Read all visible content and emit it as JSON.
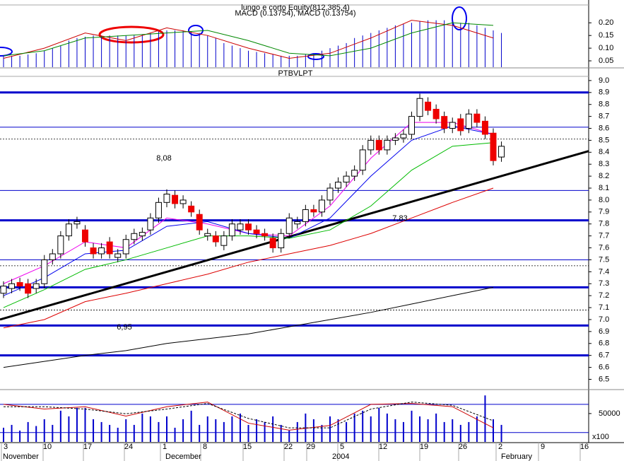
{
  "chart_data": [
    {
      "type": "macd",
      "title": "lungo e corto Equity(812.385,4)",
      "subtitle": "MACD (0.13754), MACD (0.13754)",
      "ylim": [
        0.025,
        0.29
      ],
      "yticks": [
        {
          "value": 0.2,
          "label": "0.20"
        },
        0.15,
        {
          "value": 0.1,
          "label": "0.10"
        },
        0.05
      ],
      "bar_color": "#0000cc",
      "bars": [
        0.07,
        0.07,
        0.07,
        0.075,
        0.08,
        0.09,
        0.1,
        0.11,
        0.13,
        0.14,
        0.145,
        0.15,
        0.15,
        0.15,
        0.15,
        0.15,
        0.15,
        0.155,
        0.16,
        0.165,
        0.17,
        0.17,
        0.17,
        0.165,
        0.16,
        0.15,
        0.14,
        0.12,
        0.11,
        0.1,
        0.09,
        0.085,
        0.08,
        0.075,
        0.07,
        0.07,
        0.07,
        0.075,
        0.08,
        0.09,
        0.1,
        0.11,
        0.12,
        0.14,
        0.15,
        0.16,
        0.17,
        0.18,
        0.19,
        0.195,
        0.2,
        0.205,
        0.21,
        0.21,
        0.21,
        0.21,
        0.2,
        0.2,
        0.19,
        0.18,
        0.17,
        0.16
      ],
      "series": [
        {
          "color": "#cc0000",
          "values": [
            0.06,
            0.1,
            0.16,
            0.13,
            0.18,
            0.15,
            0.1,
            0.06,
            0.08,
            0.14,
            0.21,
            0.19,
            0.14
          ]
        },
        {
          "color": "#008800",
          "values": [
            0.07,
            0.09,
            0.14,
            0.15,
            0.16,
            0.17,
            0.13,
            0.08,
            0.07,
            0.1,
            0.16,
            0.2,
            0.19
          ]
        }
      ]
    },
    {
      "type": "candlestick",
      "title": "PTBVLPT",
      "ylim": [
        6.42,
        9.1
      ],
      "yticks": [
        {
          "value": 9,
          "label": "9.0"
        },
        8.9,
        8.8,
        8.7,
        8.6,
        8.5,
        8.4,
        8.3,
        8.2,
        8.1,
        {
          "value": 8,
          "label": "8.0"
        },
        7.9,
        7.8,
        7.7,
        7.6,
        7.5,
        7.4,
        7.3,
        7.2,
        7.1,
        {
          "value": 7,
          "label": "7.0"
        },
        6.9,
        6.8,
        6.7,
        6.6,
        6.5
      ],
      "up_color": "#ffffff",
      "down_color": "#ee0000",
      "open": [
        7.22,
        7.26,
        7.31,
        7.3,
        7.26,
        7.3,
        7.5,
        7.55,
        7.7,
        7.8,
        7.75,
        7.6,
        7.55,
        7.65,
        7.52,
        7.55,
        7.67,
        7.7,
        7.75,
        7.85,
        7.98,
        8.04,
        7.97,
        7.95,
        7.88,
        7.7,
        7.7,
        7.62,
        7.7,
        7.75,
        7.8,
        7.75,
        7.72,
        7.68,
        7.6,
        7.72,
        7.8,
        7.82,
        7.92,
        7.9,
        8.0,
        8.1,
        8.15,
        8.2,
        8.25,
        8.42,
        8.5,
        8.42,
        8.5,
        8.52,
        8.55,
        8.7,
        8.82,
        8.76,
        8.7,
        8.6,
        8.68,
        8.6,
        8.72,
        8.66,
        8.56,
        8.36
      ],
      "high": [
        7.32,
        7.34,
        7.35,
        7.34,
        7.34,
        7.54,
        7.59,
        7.74,
        7.84,
        7.86,
        7.79,
        7.64,
        7.64,
        7.69,
        7.59,
        7.71,
        7.76,
        7.77,
        7.89,
        8.02,
        8.09,
        8.08,
        8.04,
        7.99,
        7.92,
        7.76,
        7.74,
        7.74,
        7.84,
        7.84,
        7.84,
        7.79,
        7.76,
        7.72,
        7.76,
        7.89,
        7.86,
        7.96,
        7.96,
        8.04,
        8.14,
        8.19,
        8.24,
        8.29,
        8.46,
        8.54,
        8.54,
        8.54,
        8.56,
        8.59,
        8.74,
        8.89,
        8.86,
        8.8,
        8.74,
        8.69,
        8.72,
        8.76,
        8.76,
        8.7,
        8.6,
        8.49
      ],
      "low": [
        7.18,
        7.22,
        7.24,
        7.18,
        7.22,
        7.26,
        7.46,
        7.51,
        7.66,
        7.76,
        7.61,
        7.51,
        7.51,
        7.51,
        7.48,
        7.51,
        7.63,
        7.66,
        7.71,
        7.81,
        7.94,
        7.93,
        7.93,
        7.86,
        7.71,
        7.66,
        7.61,
        7.58,
        7.66,
        7.71,
        7.71,
        7.68,
        7.66,
        7.56,
        7.56,
        7.68,
        7.76,
        7.78,
        7.86,
        7.86,
        7.96,
        8.06,
        8.11,
        8.16,
        8.21,
        8.38,
        8.38,
        8.38,
        8.46,
        8.48,
        8.51,
        8.66,
        8.71,
        8.64,
        8.56,
        8.56,
        8.54,
        8.56,
        8.61,
        8.51,
        8.29,
        8.32
      ],
      "close": [
        7.28,
        7.3,
        7.28,
        7.22,
        7.3,
        7.5,
        7.55,
        7.7,
        7.8,
        7.82,
        7.65,
        7.55,
        7.6,
        7.55,
        7.55,
        7.67,
        7.72,
        7.73,
        7.85,
        7.98,
        8.05,
        7.97,
        8.0,
        7.9,
        7.75,
        7.72,
        7.65,
        7.7,
        7.8,
        7.8,
        7.75,
        7.72,
        7.7,
        7.6,
        7.72,
        7.85,
        7.82,
        7.92,
        7.9,
        8.0,
        8.1,
        8.15,
        8.2,
        8.25,
        8.42,
        8.5,
        8.42,
        8.5,
        8.52,
        8.55,
        8.7,
        8.85,
        8.75,
        8.68,
        8.6,
        8.65,
        8.58,
        8.72,
        8.65,
        8.55,
        8.33,
        8.45
      ],
      "series": [
        {
          "color": "#ee00ee",
          "values": [
            7.3,
            7.45,
            7.65,
            7.6,
            7.85,
            7.8,
            7.72,
            7.7,
            7.95,
            8.35,
            8.65,
            8.65,
            8.55
          ]
        },
        {
          "color": "#0000ee",
          "values": [
            7.2,
            7.35,
            7.55,
            7.58,
            7.78,
            7.82,
            7.72,
            7.68,
            7.85,
            8.2,
            8.5,
            8.62,
            8.55
          ]
        },
        {
          "color": "#00bb00",
          "values": [
            7.1,
            7.25,
            7.42,
            7.5,
            7.6,
            7.7,
            7.7,
            7.68,
            7.75,
            7.95,
            8.25,
            8.45,
            8.48
          ]
        },
        {
          "color": "#dd0000",
          "values": [
            6.93,
            7.0,
            7.15,
            7.22,
            7.3,
            7.38,
            7.48,
            7.55,
            7.62,
            7.72,
            7.85,
            7.98,
            8.1
          ]
        },
        {
          "color": "#000000",
          "values": [
            6.6,
            6.65,
            6.7,
            6.74,
            6.8,
            6.84,
            6.88,
            6.94,
            7.0,
            7.06,
            7.13,
            7.2,
            7.27
          ]
        }
      ],
      "trendline": [
        7.0,
        8.41
      ],
      "level_color": "#0000cc",
      "thick_levels": [
        8.9,
        7.83,
        7.27,
        6.95,
        6.7
      ],
      "thin_levels": [
        8.61,
        8.08,
        7.5
      ],
      "dashed_levels": [
        8.51,
        7.45,
        7.08
      ],
      "annotations": [
        "8,08",
        "7,83",
        "6,95"
      ]
    },
    {
      "type": "volume",
      "unit_label": "x100",
      "ylim": [
        0,
        91000
      ],
      "yticks": [
        50000
      ],
      "bar_color": "#0000cc",
      "values": [
        25000,
        30000,
        20000,
        35000,
        28000,
        40000,
        30000,
        55000,
        45000,
        60000,
        60000,
        40000,
        35000,
        30000,
        25000,
        40000,
        30000,
        50000,
        45000,
        35000,
        45000,
        25000,
        40000,
        55000,
        30000,
        45000,
        40000,
        35000,
        45000,
        50000,
        30000,
        40000,
        35000,
        45000,
        30000,
        20000,
        35000,
        50000,
        40000,
        30000,
        45000,
        40000,
        35000,
        50000,
        55000,
        45000,
        60000,
        50000,
        40000,
        35000,
        55000,
        45000,
        40000,
        50000,
        35000,
        40000,
        30000,
        35000,
        45000,
        82000,
        40000,
        30000
      ],
      "oscillator_ylim": [
        0,
        110
      ],
      "oscillator_levels": [
        80,
        20
      ],
      "oscillator": [
        {
          "color": "#cc0000",
          "dashed": false,
          "values": [
            80,
            70,
            75,
            55,
            75,
            85,
            40,
            25,
            35,
            80,
            82,
            75,
            30
          ]
        },
        {
          "color": "#000000",
          "dashed": true,
          "values": [
            75,
            75,
            70,
            60,
            70,
            82,
            50,
            30,
            30,
            70,
            85,
            78,
            45
          ]
        }
      ],
      "x_labels": [
        "3",
        "10",
        "17",
        "24",
        "1",
        "8",
        "15",
        "22",
        "29",
        "5",
        "12",
        "19",
        "26",
        "2",
        "9",
        "16"
      ],
      "month_labels": [
        "November",
        "December",
        "2004",
        "February"
      ]
    }
  ]
}
